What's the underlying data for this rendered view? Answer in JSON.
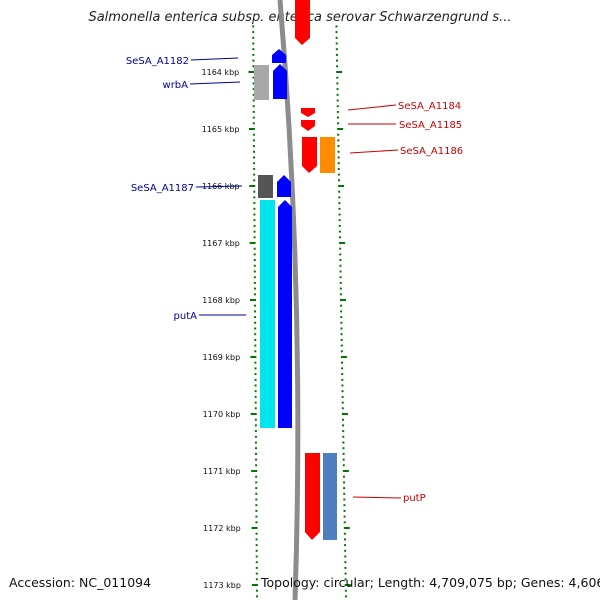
{
  "title": "Salmonella enterica subsp. enterica serovar Schwarzengrund s...",
  "footer": {
    "accession": "Accession: NC_011094",
    "topology": "Topology: circular; Length: 4,709,075 bp; Genes: 4,606"
  },
  "ticks": [
    {
      "label": "1164 kbp",
      "kbp": 1164
    },
    {
      "label": "1165 kbp",
      "kbp": 1165
    },
    {
      "label": "1166 kbp",
      "kbp": 1166
    },
    {
      "label": "1167 kbp",
      "kbp": 1167
    },
    {
      "label": "1168 kbp",
      "kbp": 1168
    },
    {
      "label": "1169 kbp",
      "kbp": 1169
    },
    {
      "label": "1170 kbp",
      "kbp": 1170
    },
    {
      "label": "1171 kbp",
      "kbp": 1171
    },
    {
      "label": "1172 kbp",
      "kbp": 1172
    },
    {
      "label": "1173 kbp",
      "kbp": 1173
    }
  ],
  "colors": {
    "forward_cds": "#0000ff",
    "reverse_cds": "#ff0000",
    "forward_label": "#000099",
    "reverse_label": "#cc0000",
    "backbone": "#8c8c8c",
    "tick": "#007700",
    "grey_gene": "#a8a8a8",
    "dark_grey_gene": "#555555",
    "cyan_gene": "#00e5ee",
    "orange_gene": "#ff8c00",
    "steel_gene": "#4f7fbf"
  },
  "labels_left": [
    {
      "text": "SeSA_A1182",
      "kbp": 1163.8
    },
    {
      "text": "wrbA",
      "kbp": 1164.22
    },
    {
      "text": "SeSA_A1187",
      "kbp": 1166.0
    },
    {
      "text": "putA",
      "kbp": 1168.25
    }
  ],
  "labels_right": [
    {
      "text": "SeSA_A1184",
      "kbp": 1164.83
    },
    {
      "text": "SeSA_A1185",
      "kbp": 1165.1
    },
    {
      "text": "SeSA_A1186",
      "kbp": 1165.57
    },
    {
      "text": "putP",
      "kbp": 1171.46
    }
  ]
}
